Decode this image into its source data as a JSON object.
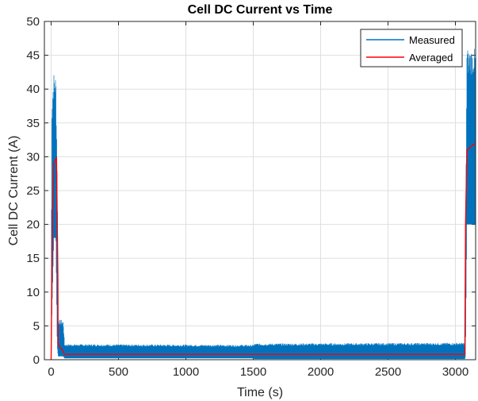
{
  "chart_data": {
    "type": "line",
    "title": "Cell DC Current vs Time",
    "xlabel": "Time (s)",
    "ylabel": "Cell DC Current (A)",
    "xlim": [
      -50,
      3150
    ],
    "ylim": [
      0,
      50
    ],
    "xticks": [
      0,
      500,
      1000,
      1500,
      2000,
      2500,
      3000
    ],
    "yticks": [
      0,
      5,
      10,
      15,
      20,
      25,
      30,
      35,
      40,
      45,
      50
    ],
    "grid": true,
    "legend_position": "top-right",
    "colors": {
      "measured": "#0072BD",
      "averaged": "#FF0000"
    },
    "series": [
      {
        "name": "Measured",
        "style": "dense-oscillation band (min/max envelope)",
        "envelope": [
          {
            "x": 0,
            "min": 0,
            "max": 0
          },
          {
            "x": 5,
            "min": 6,
            "max": 40
          },
          {
            "x": 20,
            "min": 18,
            "max": 42.5
          },
          {
            "x": 35,
            "min": 18,
            "max": 42
          },
          {
            "x": 45,
            "min": 2,
            "max": 30
          },
          {
            "x": 52,
            "min": 0.5,
            "max": 6
          },
          {
            "x": 90,
            "min": 0.5,
            "max": 5.8
          },
          {
            "x": 100,
            "min": 0.2,
            "max": 2.3
          },
          {
            "x": 1500,
            "min": 0.2,
            "max": 2.2
          },
          {
            "x": 1510,
            "min": 0.1,
            "max": 2.4
          },
          {
            "x": 3070,
            "min": 0.1,
            "max": 2.5
          },
          {
            "x": 3075,
            "min": 0.5,
            "max": 20
          },
          {
            "x": 3085,
            "min": 20,
            "max": 46
          },
          {
            "x": 3150,
            "min": 20,
            "max": 46
          }
        ]
      },
      {
        "name": "Averaged",
        "x": [
          0,
          10,
          20,
          30,
          40,
          50,
          52,
          60,
          80,
          100,
          500,
          1000,
          1500,
          2000,
          2500,
          3070,
          3075,
          3085,
          3100,
          3120,
          3150
        ],
        "y": [
          0,
          22,
          29,
          29.5,
          29.8,
          12,
          2.2,
          2.0,
          1.5,
          0.8,
          0.8,
          0.8,
          0.8,
          0.8,
          0.8,
          0.8,
          20,
          31,
          31.2,
          31.6,
          32
        ]
      }
    ]
  }
}
